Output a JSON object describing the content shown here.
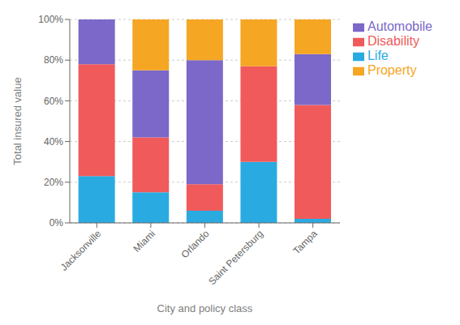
{
  "chart_data": {
    "type": "bar",
    "stacked": true,
    "xlabel": "City and policy class",
    "ylabel": "Total insured value",
    "categories": [
      "Jacksonville",
      "Miami",
      "Orlando",
      "Saint Petersburg",
      "Tampa"
    ],
    "series": [
      {
        "name": "Life",
        "color": "#29ABE2",
        "values": [
          23,
          15,
          6,
          30,
          2
        ]
      },
      {
        "name": "Disability",
        "color": "#F05A5B",
        "values": [
          55,
          27,
          13,
          47,
          56
        ]
      },
      {
        "name": "Automobile",
        "color": "#7B68C8",
        "values": [
          22,
          33,
          61,
          0,
          25
        ]
      },
      {
        "name": "Property",
        "color": "#F5A623",
        "values": [
          0,
          25,
          20,
          23,
          17
        ]
      }
    ],
    "ylim": [
      0,
      100
    ],
    "yticks": [
      {
        "value": 0,
        "label": "0%"
      },
      {
        "value": 20,
        "label": "20%"
      },
      {
        "value": 40,
        "label": "40%"
      },
      {
        "value": 60,
        "label": "60%"
      },
      {
        "value": 80,
        "label": "80%"
      },
      {
        "value": 100,
        "label": "100%"
      }
    ],
    "grid": true,
    "legend": "right"
  }
}
